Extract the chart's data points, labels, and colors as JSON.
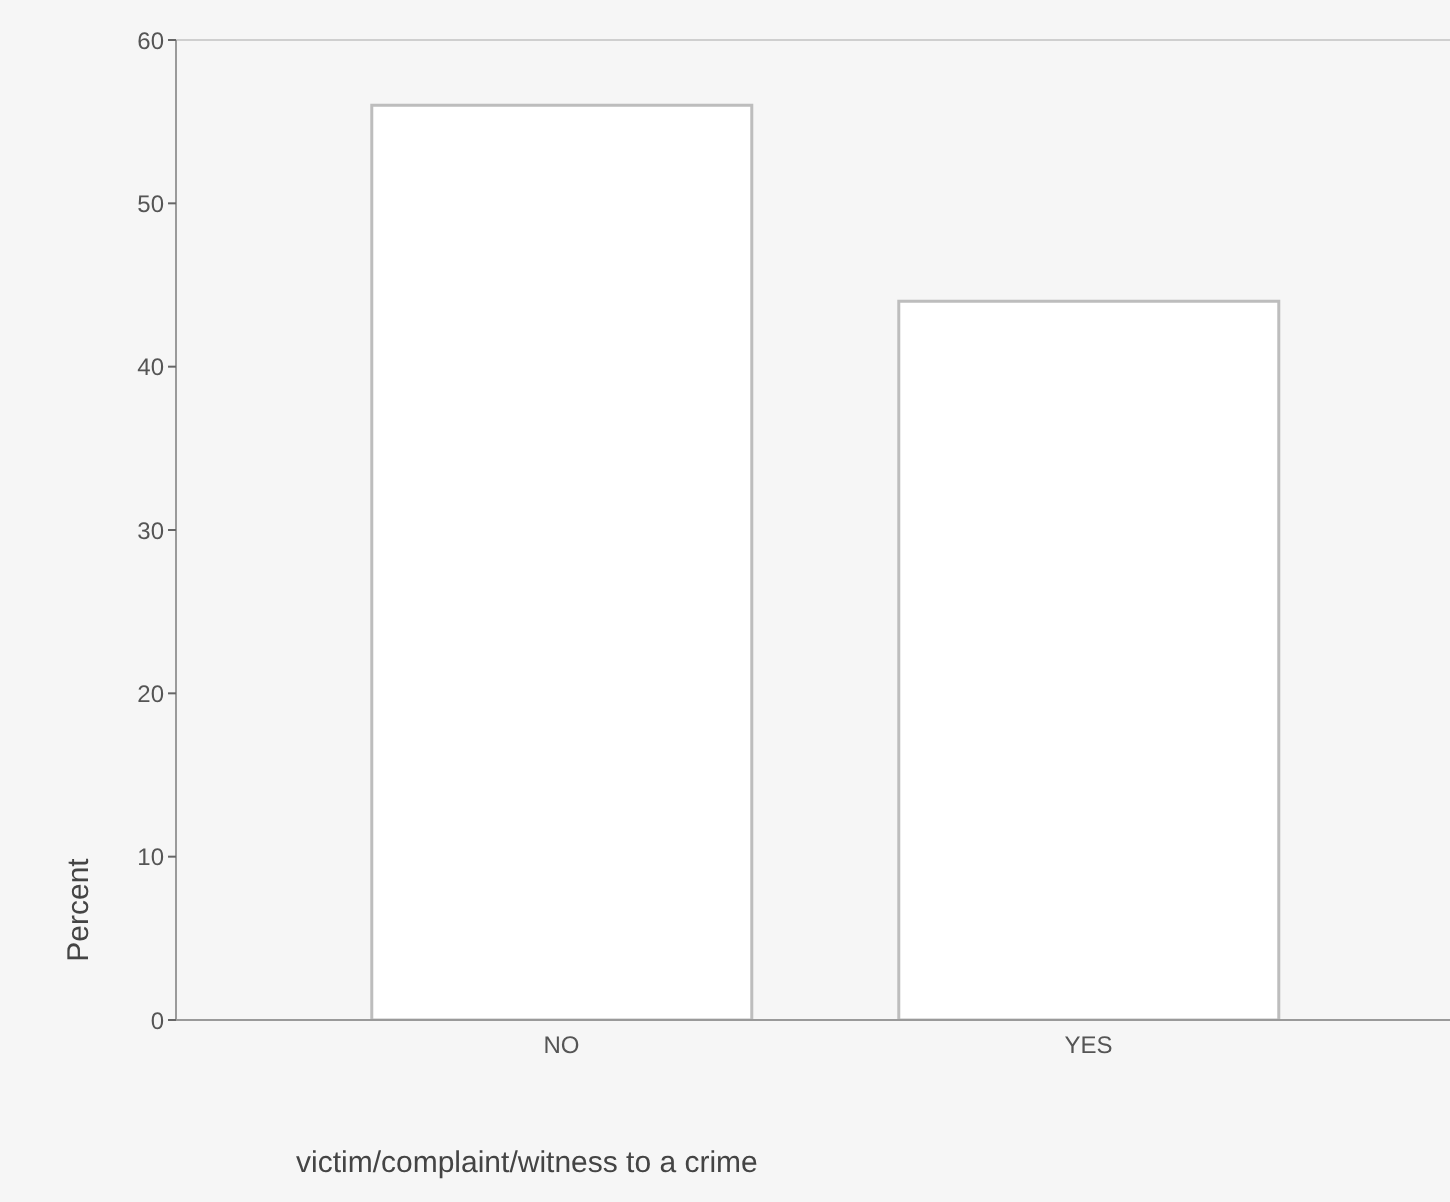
{
  "chart_data": {
    "type": "bar",
    "categories": [
      "NO",
      "YES"
    ],
    "values": [
      56,
      44
    ],
    "color": "#ffffff",
    "xlabel": "victim/complaint/witness to a crime",
    "ylabel": "Percent",
    "ylim": [
      0,
      60
    ],
    "yticks": [
      0,
      10,
      20,
      30,
      40,
      50,
      60
    ]
  }
}
